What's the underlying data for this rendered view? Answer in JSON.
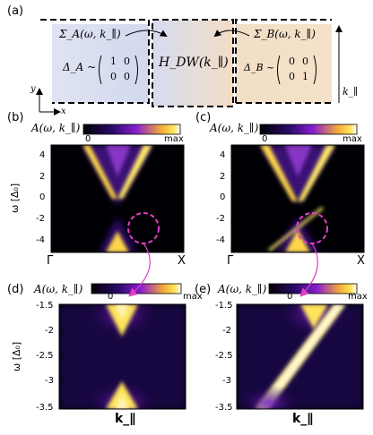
{
  "panels": {
    "a": {
      "label": "(a)",
      "sigma_a": "Σ_A(ω, k_∥)",
      "sigma_b": "Σ_B(ω, k_∥)",
      "delta_a": "Δ_A ~",
      "delta_b": "Δ_B ~",
      "matrix_a": [
        "1",
        "0",
        "0",
        "0"
      ],
      "matrix_b": [
        "0",
        "0",
        "0",
        "1"
      ],
      "h_dw": "H_DW(k_∥)",
      "axis_y": "y",
      "axis_x": "x",
      "k_par": "k_∥"
    },
    "b": {
      "label": "(b)",
      "colorbar_title": "A(ω, k_∥)",
      "cb_min": "0",
      "cb_max": "max",
      "y_ticks": [
        "4",
        "2",
        "0",
        "-2",
        "-4"
      ],
      "ylabel": "ω [Δ₀]",
      "x_left": "Γ",
      "x_right": "X"
    },
    "c": {
      "label": "(c)",
      "colorbar_title": "A(ω, k_∥)",
      "cb_min": "0",
      "cb_max": "max",
      "y_ticks": [
        "4",
        "2",
        "0",
        "-2",
        "-4"
      ],
      "x_left": "Γ",
      "x_right": "X"
    },
    "d": {
      "label": "(d)",
      "colorbar_title": "A(ω, k_∥)",
      "cb_min": "0",
      "cb_max": "max",
      "y_ticks": [
        "-1.5",
        "-2",
        "-2.5",
        "-3",
        "-3.5"
      ],
      "ylabel": "ω [Δ₀]",
      "xlabel": "k_∥"
    },
    "e": {
      "label": "(e)",
      "colorbar_title": "A(ω, k_∥)",
      "cb_min": "0",
      "cb_max": "max",
      "y_ticks": [
        "-1.5",
        "-2",
        "-2.5",
        "-3",
        "-3.5"
      ],
      "xlabel": "k_∥"
    }
  },
  "colors": {
    "inferno_dark": "#000004",
    "purple": "#5b0fa0",
    "magenta": "#e83fd8",
    "yellow": "#ffe35a",
    "white": "#fcffa4"
  }
}
